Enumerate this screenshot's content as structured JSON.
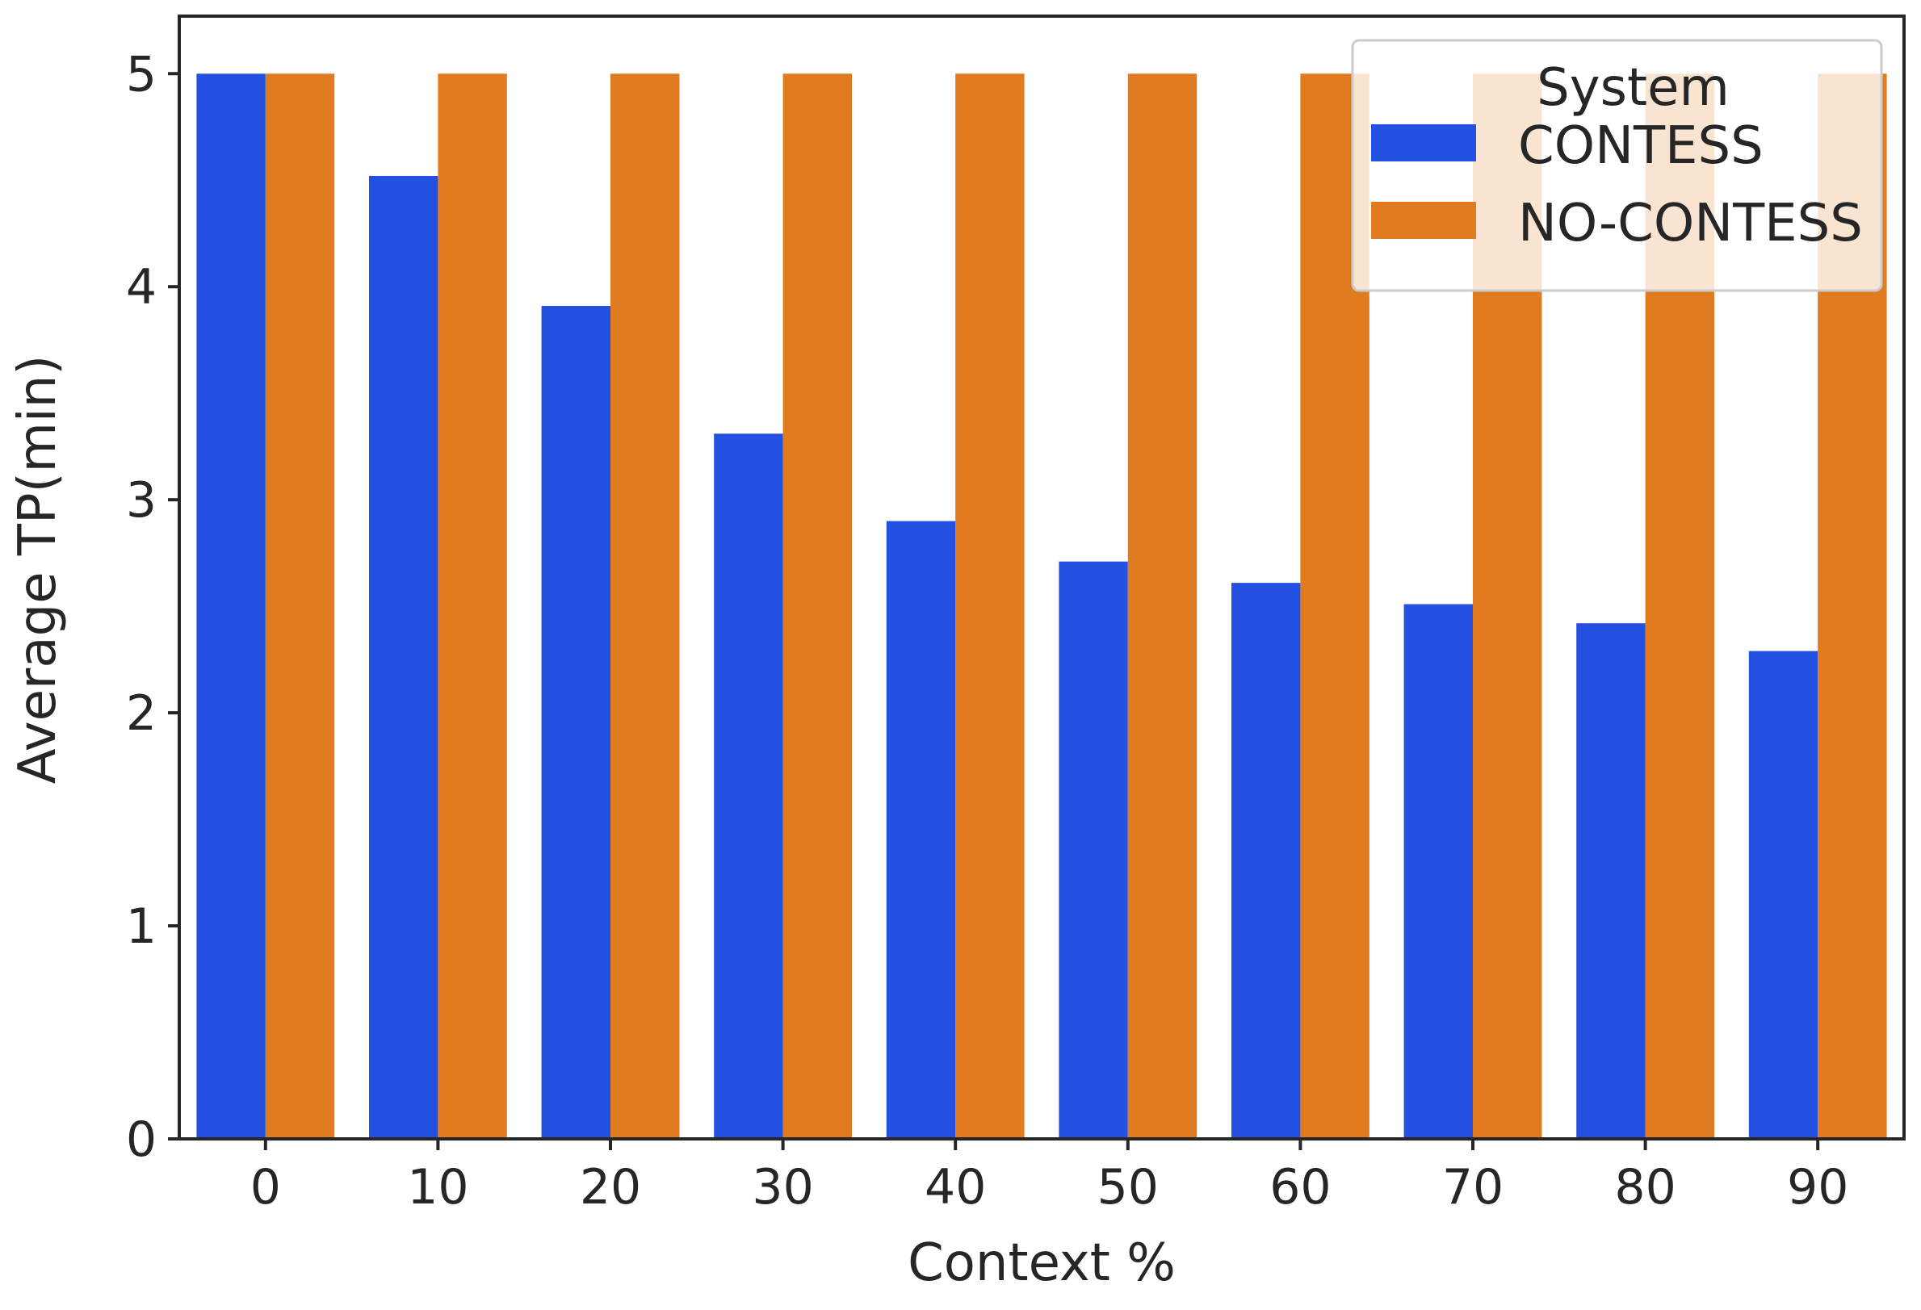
{
  "chart_data": {
    "type": "bar",
    "title": "",
    "xlabel": "Context %",
    "ylabel": "Average TP(min)",
    "categories": [
      "0",
      "10",
      "20",
      "30",
      "40",
      "50",
      "60",
      "70",
      "80",
      "90"
    ],
    "ylim": [
      0,
      5.27
    ],
    "yticks": [
      "0",
      "1",
      "2",
      "3",
      "4",
      "5"
    ],
    "grid": false,
    "legend": {
      "title": "System",
      "placement": "top-right"
    },
    "series": [
      {
        "name": "CONTESS",
        "color": "#2350e0",
        "values": [
          5.0,
          4.52,
          3.91,
          3.31,
          2.9,
          2.71,
          2.61,
          2.51,
          2.42,
          2.29
        ]
      },
      {
        "name": "NO-CONTESS",
        "color": "#e07b20",
        "values": [
          5.0,
          5.0,
          5.0,
          5.0,
          5.0,
          5.0,
          5.0,
          5.0,
          5.0,
          5.0
        ]
      }
    ]
  }
}
